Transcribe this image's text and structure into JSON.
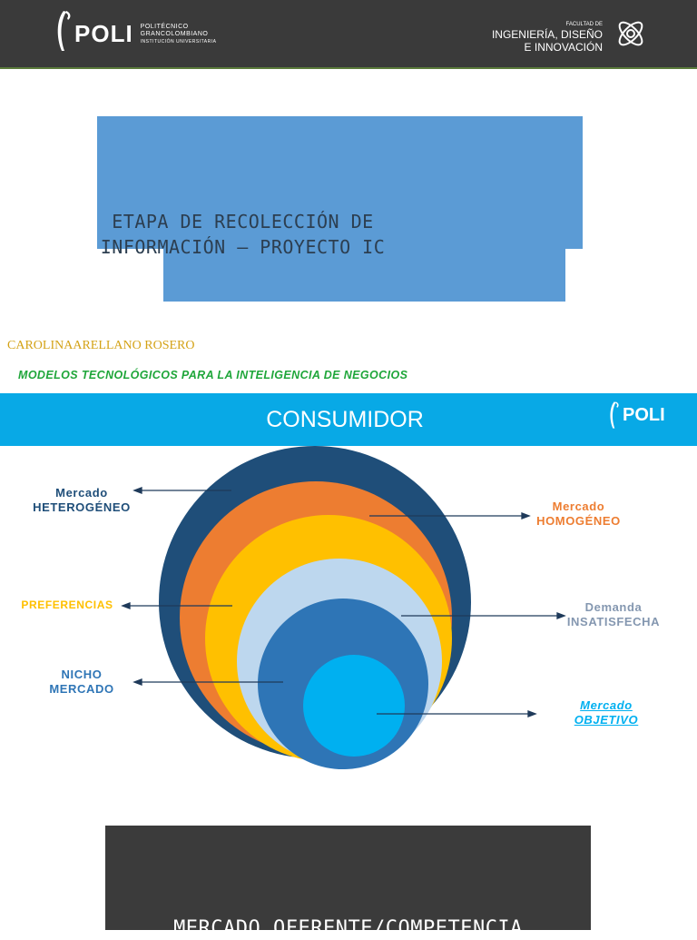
{
  "header": {
    "logo_word": "POLI",
    "logo_line1": "POLITÉCNICO",
    "logo_line2": "GRANCOLOMBIANO",
    "logo_line3": "INSTITUCIÓN UNIVERSITARIA",
    "faculty_line1": "FACULTAD DE",
    "faculty_line2": "INGENIERÍA, DISEÑO",
    "faculty_line3": "E INNOVACIÓN",
    "faculty_icon": "atom-icon"
  },
  "title": {
    "line1": "ETAPA DE RECOLECCIÓN DE",
    "line2": "INFORMACIÓN – PROYECTO IC",
    "color": "#5b9bd5"
  },
  "author": "CAROLINAARELLANO ROSERO",
  "course": "MODELOS TECNOLÓGICOS PARA LA INTELIGENCIA DE NEGOCIOS",
  "section": {
    "title": "CONSUMIDOR",
    "logo_word": "POLI",
    "color": "#08a9e6"
  },
  "diagram": {
    "labels": {
      "heterogeneo_1": "Mercado",
      "heterogeneo_2": "HETEROGÉNEO",
      "homogeneo_1": "Mercado",
      "homogeneo_2": "HOMOGÉNEO",
      "preferencias": "PREFERENCIAS",
      "demanda_1": "Demanda",
      "demanda_2": "INSATISFECHA",
      "nicho_1": "NICHO",
      "nicho_2": "MERCADO",
      "objetivo_1": "Mercado",
      "objetivo_2": "OBJETIVO"
    },
    "colors": {
      "heterogeneo": "#1f4e79",
      "homogeneo": "#ed7d31",
      "preferencias": "#ffc000",
      "demanda": "#bdd7ee",
      "nicho": "#2e75b6",
      "objetivo": "#00b0f0"
    }
  },
  "next_section": {
    "title": "MERCADO OFERENTE/COMPETENCIA"
  }
}
